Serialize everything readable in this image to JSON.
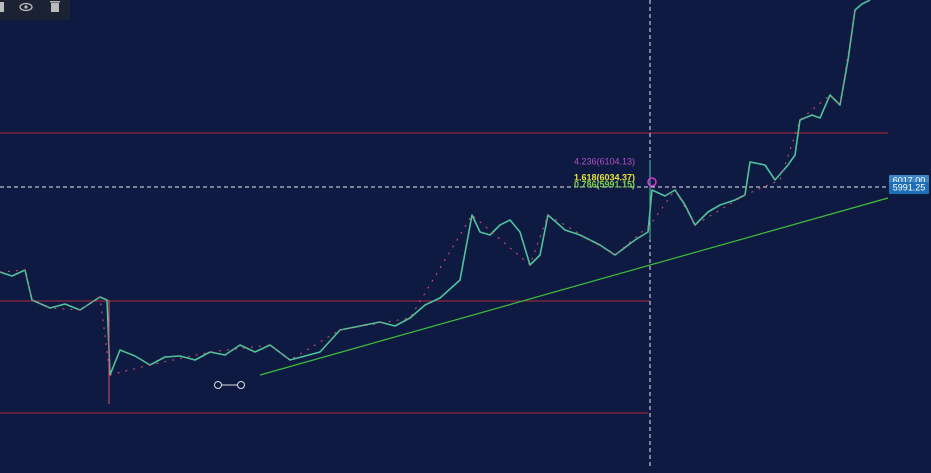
{
  "fib_levels": [
    {
      "label": "4.236(6104.13)",
      "color": "#b04fc7"
    },
    {
      "label": "1.618(6034.37)",
      "color": "#e8e23a"
    },
    {
      "label": "0.786(5991.15)",
      "color": "#7ed04a"
    }
  ],
  "price_tags": [
    {
      "label": "6017.00",
      "color": "#3d86c6"
    },
    {
      "label": "5991.25",
      "color": "#1f6fb5"
    }
  ]
}
